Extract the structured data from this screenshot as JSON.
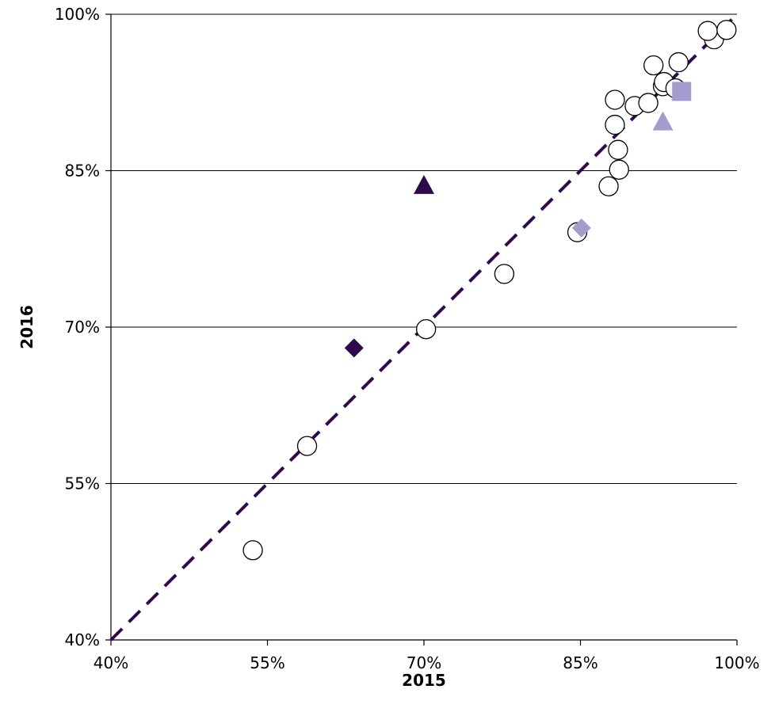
{
  "chart_data": {
    "type": "scatter",
    "xlabel": "2015",
    "ylabel": "2016",
    "xlim": [
      40,
      100
    ],
    "ylim": [
      40,
      100
    ],
    "x_ticks": [
      "40%",
      "55%",
      "70%",
      "85%",
      "100%"
    ],
    "y_ticks": [
      "40%",
      "55%",
      "70%",
      "85%",
      "100%"
    ],
    "gridlines": "horizontal",
    "reference_line": {
      "style": "dashed",
      "color": "#2d0a4a",
      "from": [
        40,
        40
      ],
      "to": [
        100,
        100
      ]
    },
    "series": [
      {
        "marker": "circle",
        "color": "#ffffff",
        "edge_color": "#000000",
        "points": [
          [
            53.6,
            48.6
          ],
          [
            58.8,
            58.6
          ],
          [
            70.2,
            69.8
          ],
          [
            77.7,
            75.1
          ],
          [
            84.7,
            79.1
          ],
          [
            87.7,
            83.5
          ],
          [
            88.7,
            85.1
          ],
          [
            88.6,
            87.0
          ],
          [
            88.3,
            89.4
          ],
          [
            88.3,
            91.8
          ],
          [
            90.2,
            91.2
          ],
          [
            91.5,
            91.5
          ],
          [
            92.9,
            93.1
          ],
          [
            93.0,
            93.5
          ],
          [
            94.1,
            92.9
          ],
          [
            92.0,
            95.1
          ],
          [
            94.4,
            95.4
          ],
          [
            97.8,
            97.6
          ],
          [
            97.2,
            98.4
          ],
          [
            99.0,
            98.5
          ]
        ]
      },
      {
        "marker": "triangle",
        "color": "#2d0a4a",
        "points": [
          [
            70.0,
            83.6
          ]
        ]
      },
      {
        "marker": "diamond",
        "color": "#2d0a4a",
        "points": [
          [
            63.3,
            68.0
          ]
        ]
      },
      {
        "marker": "triangle",
        "color": "#a59cce",
        "points": [
          [
            92.9,
            89.7
          ]
        ]
      },
      {
        "marker": "square",
        "color": "#a59cce",
        "points": [
          [
            94.7,
            92.6
          ]
        ]
      },
      {
        "marker": "diamond",
        "color": "#a59cce",
        "points": [
          [
            85.1,
            79.5
          ]
        ]
      }
    ]
  }
}
